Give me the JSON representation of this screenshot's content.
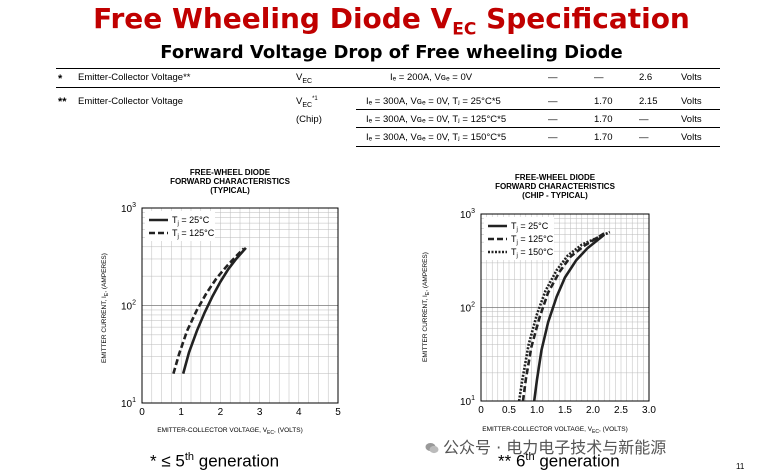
{
  "title": {
    "main": "Free Wheeling Diode V",
    "sub": "EC",
    "tail": " Specification"
  },
  "subtitle": "Forward Voltage Drop of Free wheeling Diode",
  "spec_rows": [
    {
      "mark": "*",
      "param": "Emitter-Collector Voltage**",
      "sym": "V",
      "sym_sub": "EC",
      "sym_sup": "",
      "note": "",
      "cond": "Iₑ = 200A, Vɢₑ = 0V",
      "min": "—",
      "typ": "—",
      "max": "2.6",
      "unit": "Volts"
    },
    {
      "mark": "**",
      "param": "Emitter-Collector Voltage",
      "sym": "V",
      "sym_sub": "EC",
      "sym_sup": "*1",
      "note": "(Chip)",
      "cond": "Iₑ = 300A, Vɢₑ = 0V, Tⱼ = 25°C*5",
      "min": "—",
      "typ": "1.70",
      "max": "2.15",
      "unit": "Volts"
    },
    {
      "mark": "",
      "param": "",
      "sym": "",
      "sym_sub": "",
      "sym_sup": "",
      "note": "",
      "cond": "Iₑ = 300A, Vɢₑ = 0V, Tⱼ = 125°C*5",
      "min": "—",
      "typ": "1.70",
      "max": "—",
      "unit": "Volts"
    },
    {
      "mark": "",
      "param": "",
      "sym": "",
      "sym_sub": "",
      "sym_sup": "",
      "note": "",
      "cond": "Iₑ = 300A, Vɢₑ = 0V, Tⱼ = 150°C*5",
      "min": "—",
      "typ": "1.70",
      "max": "—",
      "unit": "Volts"
    }
  ],
  "chart_data": [
    {
      "type": "line",
      "title": "FREE-WHEEL DIODE",
      "subtitle": "FORWARD CHARACTERISTICS",
      "subtitle2": "(TYPICAL)",
      "xlabel": "EMITTER-COLLECTOR VOLTAGE, V",
      "xlabel_sub": "EC",
      "xlabel_tail": ", (VOLTS)",
      "ylabel": "EMITTER CURRENT, I",
      "ylabel_sub": "E",
      "ylabel_tail": ", (AMPERES)",
      "xlim": [
        0,
        5
      ],
      "ylim": [
        10,
        1000
      ],
      "yscale": "log",
      "xticks": [
        "0",
        "1",
        "2",
        "3",
        "4",
        "5"
      ],
      "yticks": [
        {
          "base": "10",
          "exp": "1"
        },
        {
          "base": "10",
          "exp": "2"
        },
        {
          "base": "10",
          "exp": "3"
        }
      ],
      "legend_position": "top-left",
      "series": [
        {
          "name": "T",
          "name_sub": "j",
          "name_tail": " = 25°C",
          "style": "solid",
          "x": [
            1.05,
            1.2,
            1.4,
            1.6,
            1.8,
            2.0,
            2.2,
            2.4,
            2.65
          ],
          "y": [
            20,
            33,
            55,
            85,
            125,
            175,
            235,
            300,
            390
          ]
        },
        {
          "name": "T",
          "name_sub": "j",
          "name_tail": " = 125°C",
          "style": "dashed",
          "x": [
            0.8,
            0.95,
            1.15,
            1.4,
            1.65,
            1.9,
            2.15,
            2.4,
            2.6
          ],
          "y": [
            20,
            32,
            55,
            90,
            135,
            190,
            250,
            320,
            385
          ]
        }
      ]
    },
    {
      "type": "line",
      "title": "FREE-WHEEL DIODE",
      "subtitle": "FORWARD CHARACTERISTICS",
      "subtitle2": "(CHIP - TYPICAL)",
      "xlabel": "EMITTER-COLLECTOR VOLTAGE, V",
      "xlabel_sub": "EC",
      "xlabel_tail": ", (VOLTS)",
      "ylabel": "EMITTER CURRENT, I",
      "ylabel_sub": "E",
      "ylabel_tail": ", (AMPERES)",
      "xlim": [
        0,
        3
      ],
      "ylim": [
        10,
        1000
      ],
      "yscale": "log",
      "xticks": [
        "0",
        "0.5",
        "1.0",
        "1.5",
        "2.0",
        "2.5",
        "3.0"
      ],
      "yticks": [
        {
          "base": "10",
          "exp": "1"
        },
        {
          "base": "10",
          "exp": "2"
        },
        {
          "base": "10",
          "exp": "3"
        }
      ],
      "legend_position": "top-left",
      "series": [
        {
          "name": "T",
          "name_sub": "j",
          "name_tail": " = 25°C",
          "style": "solid",
          "x": [
            0.95,
            1.0,
            1.08,
            1.2,
            1.35,
            1.5,
            1.7,
            1.9,
            2.2
          ],
          "y": [
            10,
            17,
            35,
            70,
            130,
            210,
            320,
            430,
            600
          ]
        },
        {
          "name": "T",
          "name_sub": "j",
          "name_tail": " = 125°C",
          "style": "dashed",
          "x": [
            0.75,
            0.8,
            0.9,
            1.05,
            1.2,
            1.4,
            1.6,
            1.85,
            2.2
          ],
          "y": [
            10,
            17,
            38,
            80,
            145,
            240,
            350,
            460,
            620
          ]
        },
        {
          "name": "T",
          "name_sub": "j",
          "name_tail": " = 150°C",
          "style": "dotted",
          "x": [
            0.68,
            0.74,
            0.85,
            1.0,
            1.15,
            1.35,
            1.55,
            1.8,
            2.3
          ],
          "y": [
            10,
            17,
            40,
            85,
            150,
            250,
            360,
            470,
            640
          ]
        }
      ]
    }
  ],
  "footers": [
    {
      "prefix": "* ≤ 5",
      "sup": "th",
      "tail": " generation"
    },
    {
      "prefix": "**  6",
      "sup": "th",
      "tail": " generation"
    }
  ],
  "watermark": "公众号 · 电力电子技术与新能源",
  "page_number": "11"
}
